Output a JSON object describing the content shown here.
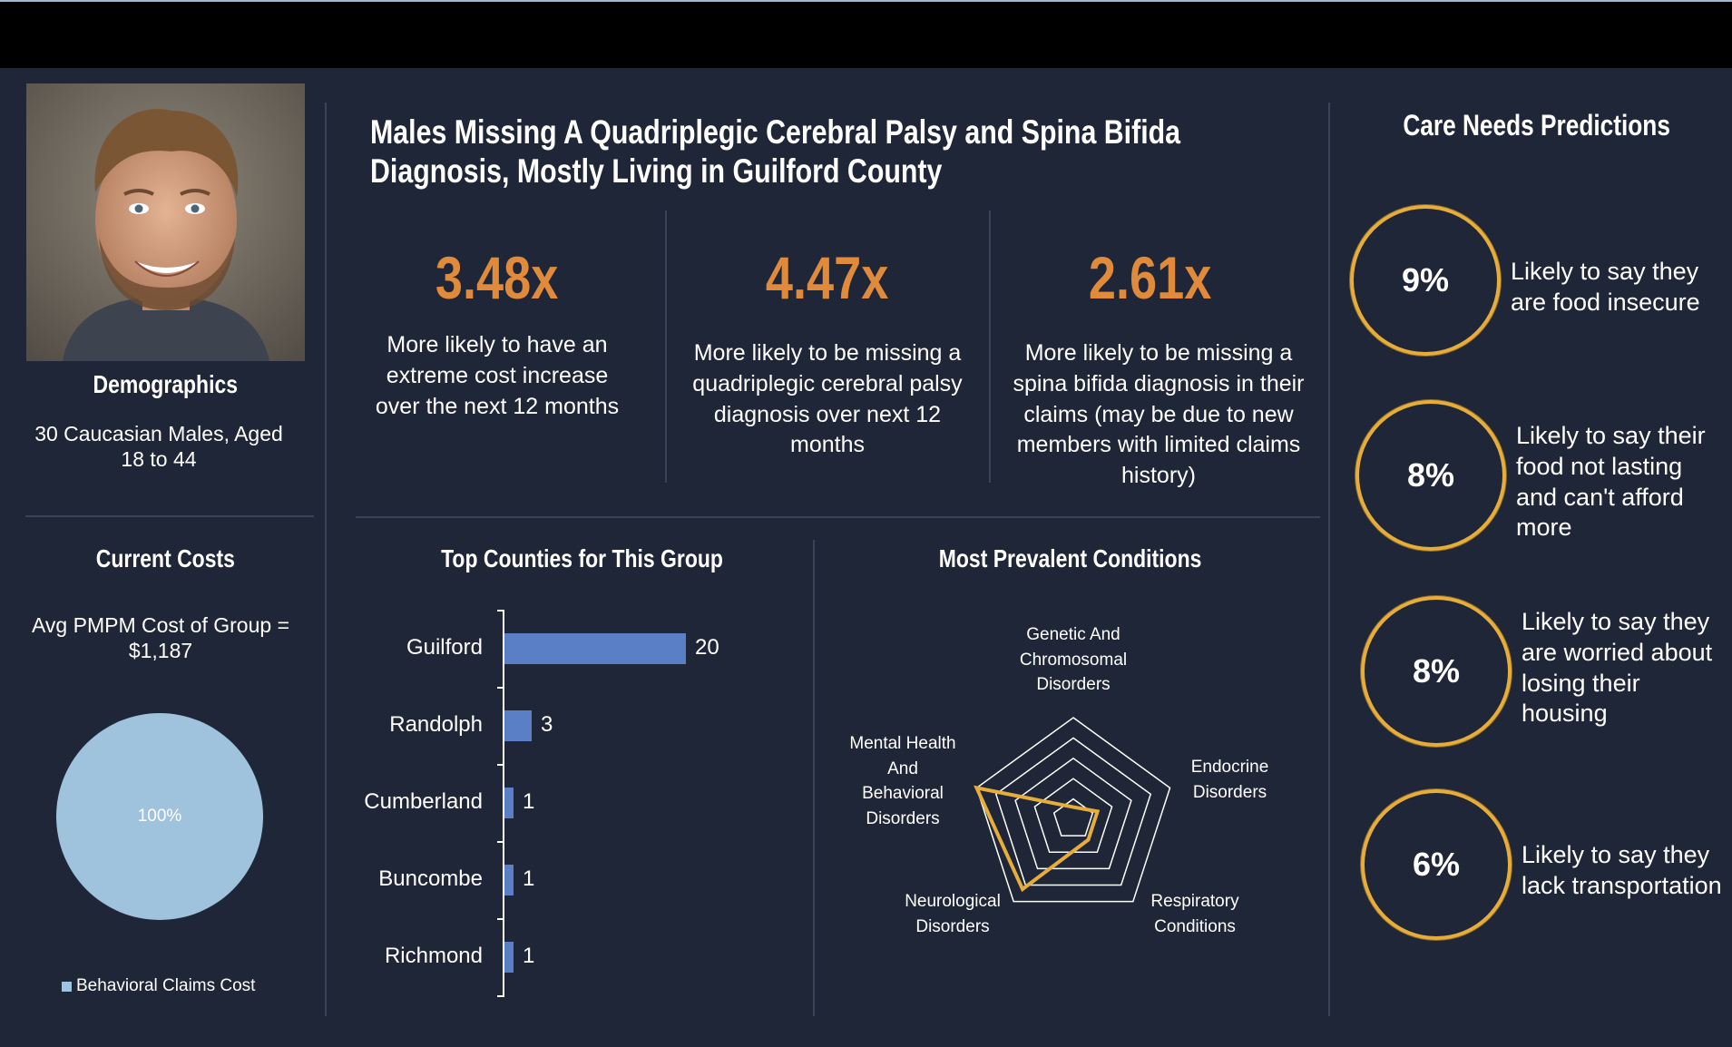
{
  "demographics": {
    "heading": "Demographics",
    "description": "30 Caucasian Males, Aged 18 to 44"
  },
  "costs": {
    "heading": "Current Costs",
    "avg_label": "Avg PMPM Cost of Group = $1,187",
    "pie_label": "100%",
    "legend": "Behavioral Claims Cost",
    "pie_color": "#9fc2dd"
  },
  "header": {
    "title_line1": "Males Missing A Quadriplegic Cerebral Palsy and Spina Bifida",
    "title_line2": "Diagnosis, Mostly Living  in Guilford County"
  },
  "stats": [
    {
      "value": "3.48x",
      "description": "More likely to have an extreme cost increase over the next 12 months"
    },
    {
      "value": "4.47x",
      "description": "More likely to be missing a quadriplegic cerebral palsy diagnosis over next 12 months"
    },
    {
      "value": "2.61x",
      "description": "More likely to be missing a spina bifida diagnosis in their claims (may be due to new members with limited claims history)"
    }
  ],
  "counties_chart": {
    "heading": "Top Counties for This Group",
    "chart_data": {
      "type": "bar",
      "orientation": "horizontal",
      "categories": [
        "Guilford",
        "Randolph",
        "Cumberland",
        "Buncombe",
        "Richmond"
      ],
      "values": [
        20,
        3,
        1,
        1,
        1
      ],
      "bar_color": "#5b7fc6"
    }
  },
  "conditions_chart": {
    "heading": "Most Prevalent Conditions",
    "chart_data": {
      "type": "radar",
      "axes": [
        "Genetic And Chromosomal Disorders",
        "Endocrine Disorders",
        "Respiratory Conditions",
        "Neurological Disorders",
        "Mental Health And Behavioral Disorders"
      ],
      "values": [
        0.02,
        0.25,
        0.25,
        0.85,
        1.0
      ],
      "rings": 5,
      "line_color": "#e6ad3a"
    }
  },
  "predictions": {
    "heading": "Care Needs Predictions",
    "items": [
      {
        "value": "9%",
        "text": "Likely to say they are food insecure"
      },
      {
        "value": "8%",
        "text": "Likely to say their food not lasting and can't afford more"
      },
      {
        "value": "8%",
        "text": "Likely to say they are worried about losing their housing"
      },
      {
        "value": "6%",
        "text": "Likely to say they lack transportation"
      }
    ]
  }
}
